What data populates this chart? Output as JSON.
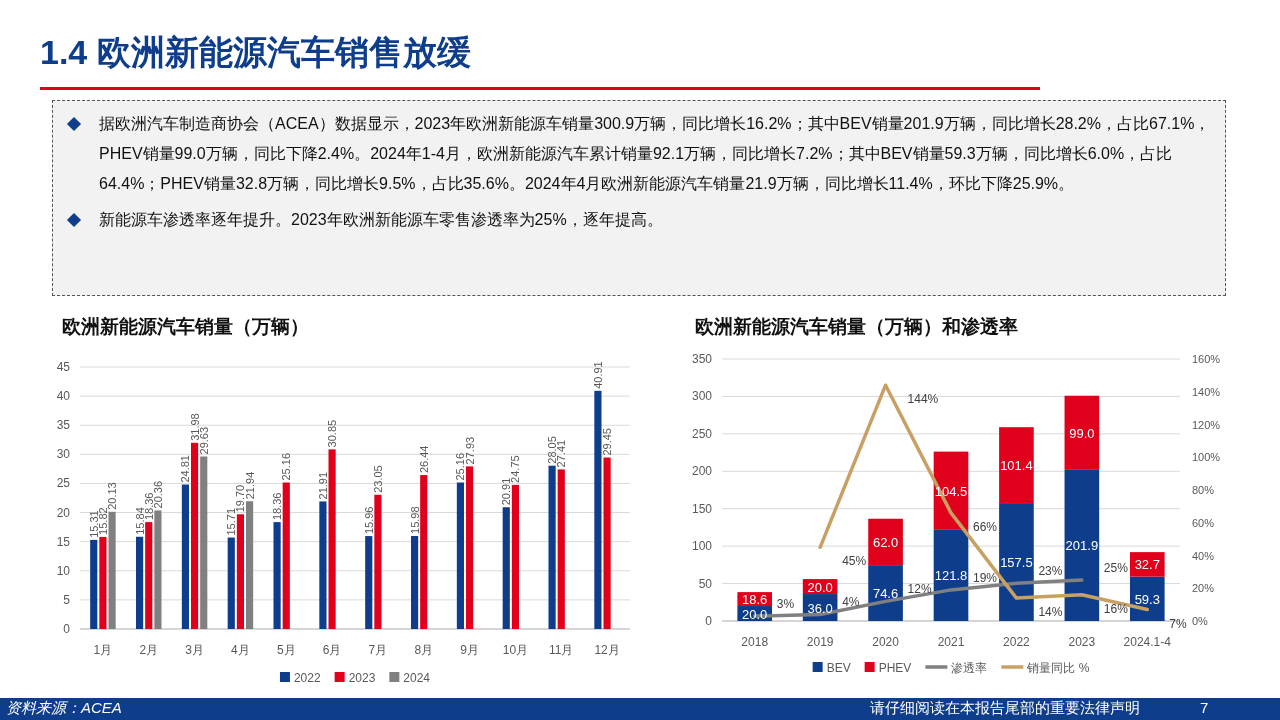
{
  "chart_data": [
    {
      "type": "bar",
      "title": "欧洲新能源汽车销量（万辆）",
      "categories": [
        "1月",
        "2月",
        "3月",
        "4月",
        "5月",
        "6月",
        "7月",
        "8月",
        "9月",
        "10月",
        "11月",
        "12月"
      ],
      "series": [
        {
          "name": "2022",
          "color": "#0e3d8c",
          "values": [
            15.31,
            15.84,
            24.81,
            15.71,
            18.36,
            21.91,
            15.96,
            15.98,
            25.16,
            20.91,
            28.05,
            40.91
          ],
          "value_labels": [
            "15.31",
            "15.84",
            "24.81",
            "15.71",
            "18.36",
            "21.91",
            "15.96",
            "15.98",
            "25.16",
            "20.91",
            "28.05",
            "40.91"
          ]
        },
        {
          "name": "2023",
          "color": "#e0001b",
          "values": [
            15.82,
            18.36,
            31.98,
            19.7,
            25.16,
            30.85,
            23.05,
            26.44,
            27.93,
            24.75,
            27.41,
            29.45
          ],
          "value_labels": [
            "15.82",
            "18.36",
            "31.98",
            "19.70",
            "25.16",
            "30.85",
            "23.05",
            "26.44",
            "27.93",
            "24.75",
            "27.41",
            "29.45"
          ]
        },
        {
          "name": "2024",
          "color": "#808080",
          "values": [
            20.13,
            20.36,
            29.63,
            21.94,
            null,
            null,
            null,
            null,
            null,
            null,
            null,
            null
          ],
          "value_labels": [
            "20.13",
            "20.36",
            "29.63",
            "21.94",
            null,
            null,
            null,
            null,
            null,
            null,
            null,
            null
          ]
        }
      ],
      "ylim": [
        0,
        45
      ],
      "yticks": [
        0,
        5,
        10,
        15,
        20,
        25,
        30,
        35,
        40,
        45
      ],
      "grid": "y",
      "legend": "bottom",
      "annotations": [
        "1.4 欧洲新能源汽车销售放缓",
        "据欧洲汽车制造商协会（ACEA）数据显示，2023年欧洲新能源车销量300.9万辆，同比增长16.2%；其中BEV销量201.9万辆，同比增长28.2%，占比67.1%，PHEV销量99.0万辆，同比下降2.4%。2024年1-4月，欧洲新能源汽车累计销量92.1万辆，同比增长7.2%；其中BEV销量59.3万辆，同比增长6.0%，占比64.4%；PHEV销量32.8万辆，同比增长9.5%，占比35.6%。2024年4月欧洲新能源汽车销量21.9万辆，同比增长11.4%，环比下降25.9%。",
        "新能源车渗透率逐年提升。2023年欧洲新能源车零售渗透率为25%，逐年提高。",
        "资料来源：ACEA",
        "请仔细阅读在本报告尾部的重要法律声明",
        "7"
      ]
    },
    {
      "type": "bar",
      "title": "欧洲新能源汽车销量（万辆）和渗透率",
      "categories": [
        "2018",
        "2019",
        "2020",
        "2021",
        "2022",
        "2023",
        "2024.1-4"
      ],
      "stacked": true,
      "series": [
        {
          "name": "BEV",
          "color": "#0e3d8c",
          "values": [
            20.0,
            36.0,
            74.6,
            121.8,
            157.5,
            201.9,
            59.3
          ],
          "value_labels": [
            "20.0",
            "36.0",
            "74.6",
            "121.8",
            "157.5",
            "201.9",
            "59.3"
          ]
        },
        {
          "name": "PHEV",
          "color": "#e0001b",
          "values": [
            18.6,
            20.0,
            62.0,
            104.5,
            101.4,
            99.0,
            32.7
          ],
          "value_labels": [
            "18.6",
            "20.0",
            "62.0",
            "104.5",
            "101.4",
            "99.0",
            "32.7"
          ]
        },
        {
          "name": "渗透率",
          "type": "line",
          "axis": "y2",
          "color": "#808080",
          "values": [
            3,
            4,
            12,
            19,
            23,
            25,
            null
          ],
          "value_labels": [
            "3%",
            "4%",
            "12%",
            "19%",
            "23%",
            "25%",
            null
          ]
        },
        {
          "name": "销量同比 %",
          "type": "line",
          "axis": "y2",
          "color": "#c9a063",
          "values": [
            null,
            45,
            144,
            66,
            14,
            16,
            7
          ],
          "value_labels": [
            null,
            "45%",
            "144%",
            "66%",
            "14%",
            "16%",
            "7%"
          ]
        }
      ],
      "ylim": [
        0,
        350
      ],
      "yticks": [
        0,
        50,
        100,
        150,
        200,
        250,
        300,
        350
      ],
      "y2lim": [
        0,
        160
      ],
      "y2ticks": [
        {
          "value": 0,
          "label": "0%"
        },
        {
          "value": 20,
          "label": "20%"
        },
        {
          "value": 40,
          "label": "40%"
        },
        {
          "value": 60,
          "label": "60%"
        },
        {
          "value": 80,
          "label": "80%"
        },
        {
          "value": 100,
          "label": "100%"
        },
        {
          "value": 120,
          "label": "120%"
        },
        {
          "value": 140,
          "label": "140%"
        },
        {
          "value": 160,
          "label": "160%"
        }
      ],
      "grid": "y",
      "legend": "bottom"
    }
  ]
}
